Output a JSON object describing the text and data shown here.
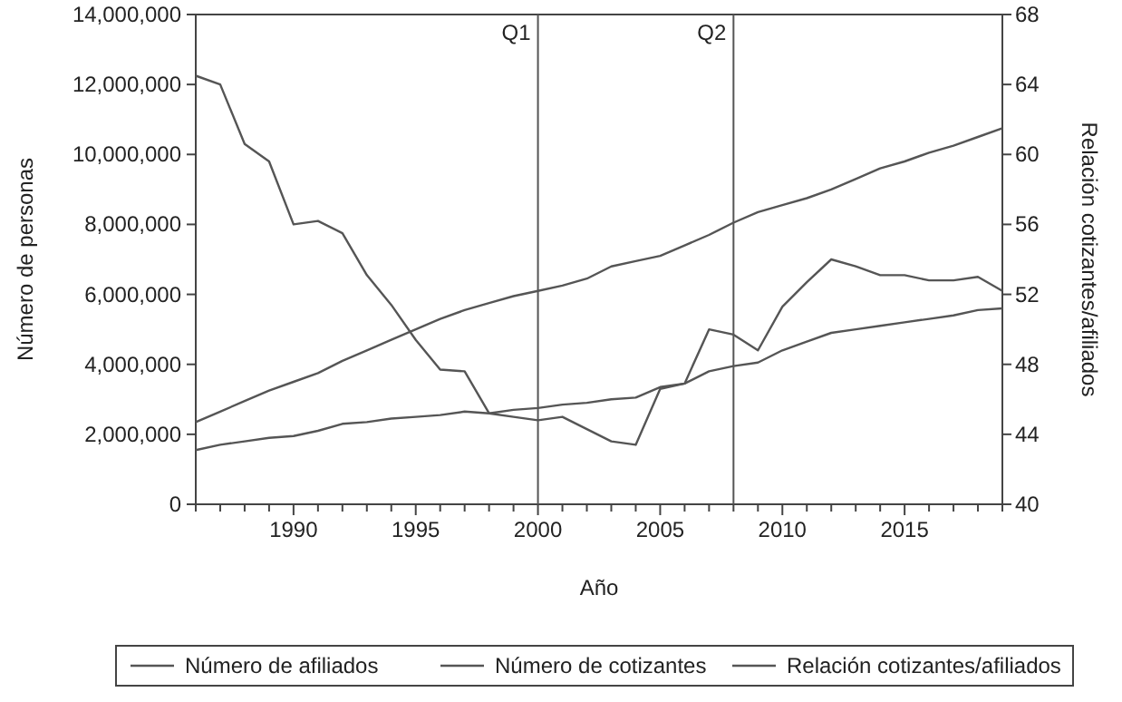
{
  "chart_data": {
    "type": "line",
    "xlabel": "Año",
    "ylabel": "Número de personas",
    "y2label": "Relación cotizantes/afiliados",
    "x": [
      1986,
      1987,
      1988,
      1989,
      1990,
      1991,
      1992,
      1993,
      1994,
      1995,
      1996,
      1997,
      1998,
      1999,
      2000,
      2001,
      2002,
      2003,
      2004,
      2005,
      2006,
      2007,
      2008,
      2009,
      2010,
      2011,
      2012,
      2013,
      2014,
      2015,
      2016,
      2017,
      2018,
      2019
    ],
    "series": [
      {
        "name": "Número de afiliados",
        "color": "#555555",
        "values": [
          2350000,
          2650000,
          2950000,
          3250000,
          3500000,
          3750000,
          4100000,
          4400000,
          4700000,
          5000000,
          5300000,
          5550000,
          5750000,
          5950000,
          6100000,
          6250000,
          6450000,
          6800000,
          6950000,
          7100000,
          7400000,
          7700000,
          8050000,
          8350000,
          8550000,
          8750000,
          9000000,
          9300000,
          9600000,
          9800000,
          10050000,
          10250000,
          10500000,
          10750000
        ]
      },
      {
        "name": "Número de cotizantes",
        "color": "#555555",
        "values": [
          1550000,
          1700000,
          1800000,
          1900000,
          1950000,
          2100000,
          2300000,
          2350000,
          2450000,
          2500000,
          2550000,
          2650000,
          2600000,
          2700000,
          2750000,
          2850000,
          2900000,
          3000000,
          3050000,
          3350000,
          3450000,
          3800000,
          3950000,
          4050000,
          4400000,
          4650000,
          4900000,
          5000000,
          5100000,
          5200000,
          5300000,
          5400000,
          5550000,
          5600000
        ]
      },
      {
        "name": "Relación cotizantes/afiliados",
        "color": "#555555",
        "axis": "y2",
        "values": [
          64.5,
          64.0,
          60.6,
          59.6,
          56.0,
          56.2,
          55.5,
          53.1,
          51.4,
          49.4,
          47.7,
          47.6,
          45.2,
          45.0,
          44.8,
          45.0,
          44.3,
          43.6,
          43.4,
          46.6,
          46.9,
          50.0,
          49.7,
          48.8,
          51.3,
          52.7,
          54.0,
          53.6,
          53.1,
          53.1,
          52.8,
          52.8,
          53.0,
          52.2
        ]
      }
    ],
    "xlim": [
      1986,
      2019
    ],
    "xticks": [
      {
        "value": 1986,
        "label": null
      },
      {
        "value": 1987,
        "label": null
      },
      {
        "value": 1988,
        "label": null
      },
      {
        "value": 1989,
        "label": null
      },
      1990,
      {
        "value": 1991,
        "label": null
      },
      {
        "value": 1992,
        "label": null
      },
      {
        "value": 1993,
        "label": null
      },
      {
        "value": 1994,
        "label": null
      },
      1995,
      {
        "value": 1996,
        "label": null
      },
      {
        "value": 1997,
        "label": null
      },
      {
        "value": 1998,
        "label": null
      },
      {
        "value": 1999,
        "label": null
      },
      2000,
      {
        "value": 2001,
        "label": null
      },
      {
        "value": 2002,
        "label": null
      },
      {
        "value": 2003,
        "label": null
      },
      {
        "value": 2004,
        "label": null
      },
      2005,
      {
        "value": 2006,
        "label": null
      },
      {
        "value": 2007,
        "label": null
      },
      {
        "value": 2008,
        "label": null
      },
      {
        "value": 2009,
        "label": null
      },
      2010,
      {
        "value": 2011,
        "label": null
      },
      {
        "value": 2012,
        "label": null
      },
      {
        "value": 2013,
        "label": null
      },
      {
        "value": 2014,
        "label": null
      },
      2015,
      {
        "value": 2016,
        "label": null
      },
      {
        "value": 2017,
        "label": null
      },
      {
        "value": 2018,
        "label": null
      },
      {
        "value": 2019,
        "label": null
      }
    ],
    "ylim": [
      0,
      14000000
    ],
    "yticks": [
      {
        "value": 0,
        "label": "0"
      },
      {
        "value": 2000000,
        "label": "2,000,000"
      },
      {
        "value": 4000000,
        "label": "4,000,000"
      },
      {
        "value": 6000000,
        "label": "6,000,000"
      },
      {
        "value": 8000000,
        "label": "8,000,000"
      },
      {
        "value": 10000000,
        "label": "10,000,000"
      },
      {
        "value": 12000000,
        "label": "12,000,000"
      },
      {
        "value": 14000000,
        "label": "14,000,000"
      }
    ],
    "y2lim": [
      40,
      68
    ],
    "y2ticks": [
      40,
      44,
      48,
      52,
      56,
      60,
      64,
      68
    ],
    "ref_lines": [
      {
        "axis": "x",
        "value": 2000,
        "label": "Q1",
        "color": "#555555"
      },
      {
        "axis": "x",
        "value": 2008,
        "label": "Q2",
        "color": "#555555"
      }
    ],
    "legend": "bottom",
    "grid": false,
    "marker": "none",
    "line_style": "solid"
  }
}
